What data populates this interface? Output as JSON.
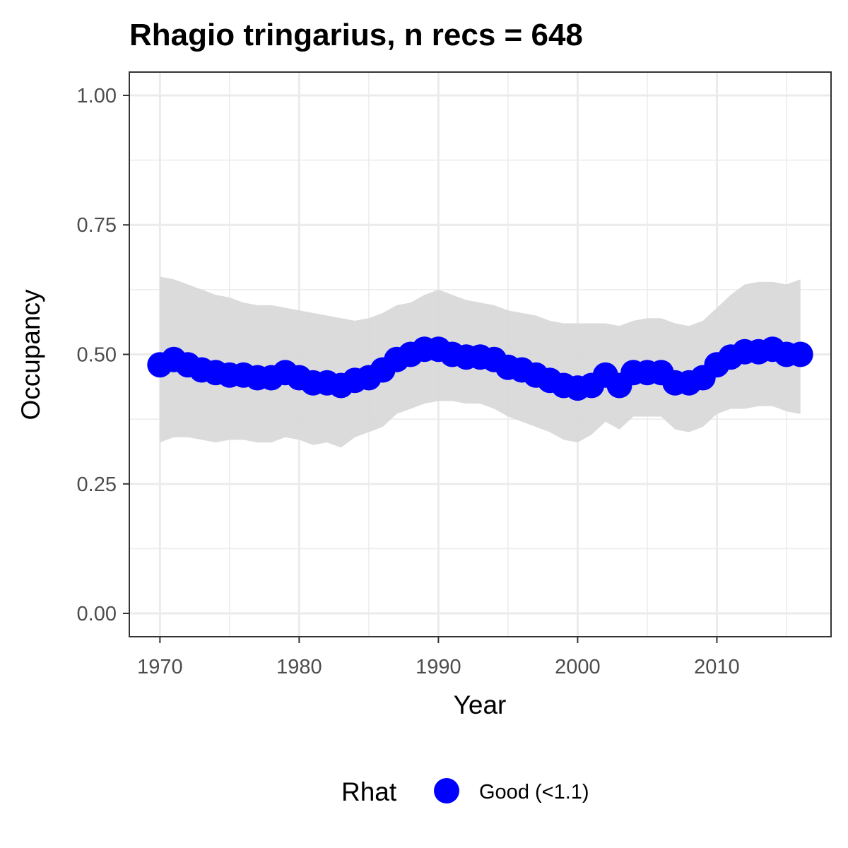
{
  "chart_data": {
    "type": "line",
    "title": "Rhagio tringarius, n recs = 648",
    "xlabel": "Year",
    "ylabel": "Occupancy",
    "xlim": [
      1967.8,
      2018.2
    ],
    "ylim": [
      -0.045,
      1.045
    ],
    "x_ticks": [
      1970,
      1980,
      1990,
      2000,
      2010
    ],
    "x_tick_labels": [
      "1970",
      "1980",
      "1990",
      "2000",
      "2010"
    ],
    "y_ticks": [
      0,
      0.25,
      0.5,
      0.75,
      1.0
    ],
    "y_tick_labels": [
      "0.00",
      "0.25",
      "0.50",
      "0.75",
      "1.00"
    ],
    "grid": true,
    "legend": {
      "title": "Rhat",
      "position": "bottom",
      "entries": [
        {
          "label": "Good (<1.1)",
          "color": "#0000ff"
        }
      ]
    },
    "colors": {
      "points": "#0000ff",
      "ribbon": "#d9d9d9",
      "grid": "#ebebeb",
      "panel_border": "#333333"
    },
    "series": [
      {
        "x": [
          1970,
          1971,
          1972,
          1973,
          1974,
          1975,
          1976,
          1977,
          1978,
          1979,
          1980,
          1981,
          1982,
          1983,
          1984,
          1985,
          1986,
          1987,
          1988,
          1989,
          1990,
          1991,
          1992,
          1993,
          1994,
          1995,
          1996,
          1997,
          1998,
          1999,
          2000,
          2001,
          2002,
          2003,
          2004,
          2005,
          2006,
          2007,
          2008,
          2009,
          2010,
          2011,
          2012,
          2013,
          2014,
          2015,
          2016
        ],
        "y": [
          0.48,
          0.49,
          0.48,
          0.47,
          0.465,
          0.46,
          0.46,
          0.455,
          0.455,
          0.465,
          0.455,
          0.445,
          0.445,
          0.44,
          0.45,
          0.455,
          0.47,
          0.49,
          0.5,
          0.51,
          0.51,
          0.5,
          0.495,
          0.495,
          0.49,
          0.475,
          0.47,
          0.46,
          0.45,
          0.44,
          0.435,
          0.44,
          0.46,
          0.44,
          0.465,
          0.465,
          0.465,
          0.445,
          0.445,
          0.455,
          0.48,
          0.495,
          0.505,
          0.505,
          0.51,
          0.5,
          0.5
        ],
        "lower": [
          0.33,
          0.34,
          0.34,
          0.335,
          0.33,
          0.335,
          0.335,
          0.33,
          0.33,
          0.34,
          0.335,
          0.325,
          0.33,
          0.32,
          0.34,
          0.35,
          0.36,
          0.385,
          0.395,
          0.405,
          0.41,
          0.41,
          0.405,
          0.405,
          0.395,
          0.38,
          0.37,
          0.36,
          0.35,
          0.335,
          0.33,
          0.345,
          0.37,
          0.355,
          0.38,
          0.38,
          0.38,
          0.355,
          0.35,
          0.36,
          0.385,
          0.395,
          0.395,
          0.4,
          0.4,
          0.39,
          0.385
        ],
        "upper": [
          0.65,
          0.645,
          0.635,
          0.625,
          0.615,
          0.61,
          0.6,
          0.595,
          0.595,
          0.59,
          0.585,
          0.58,
          0.575,
          0.57,
          0.565,
          0.57,
          0.58,
          0.595,
          0.6,
          0.615,
          0.625,
          0.615,
          0.605,
          0.6,
          0.595,
          0.585,
          0.58,
          0.575,
          0.565,
          0.56,
          0.56,
          0.56,
          0.56,
          0.555,
          0.565,
          0.57,
          0.57,
          0.56,
          0.555,
          0.565,
          0.59,
          0.615,
          0.635,
          0.64,
          0.64,
          0.635,
          0.645
        ]
      }
    ]
  }
}
